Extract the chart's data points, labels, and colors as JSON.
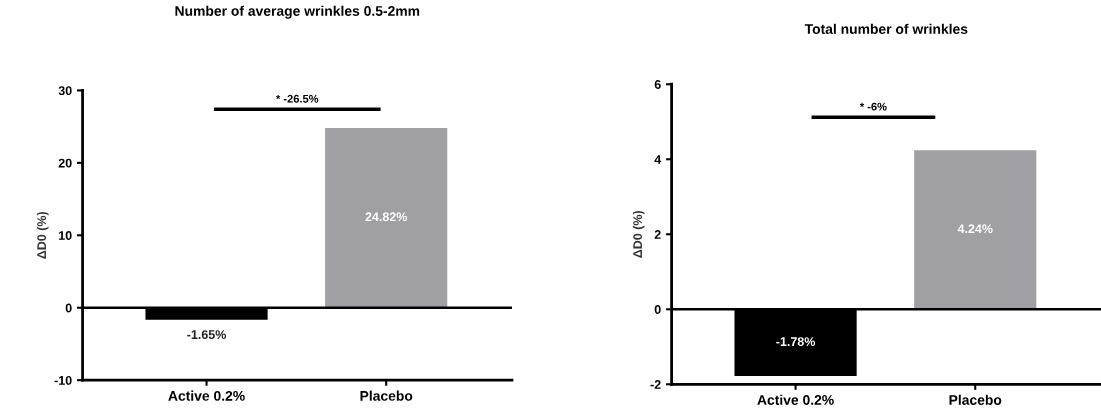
{
  "chart_data": [
    {
      "type": "bar",
      "title": "Number of average wrinkles 0.5-2mm",
      "ylabel": "ΔD0 (%)",
      "categories": [
        "Active 0.2%",
        "Placebo"
      ],
      "values": [
        -1.65,
        24.82
      ],
      "colors": [
        "#000000",
        "#a0a0a4"
      ],
      "value_labels": [
        "-1.65%",
        "24.82%"
      ],
      "ylim": [
        -10,
        30
      ],
      "yticks": [
        -10,
        0,
        10,
        20,
        30
      ],
      "ref_lines": [
        {
          "axis": "y",
          "value": 0,
          "color": "#000000"
        }
      ],
      "annotations": [
        "* -26.5%"
      ]
    },
    {
      "type": "bar",
      "title": "Total number of wrinkles",
      "ylabel": "ΔD0 (%)",
      "categories": [
        "Active 0.2%",
        "Placebo"
      ],
      "values": [
        -1.78,
        4.24
      ],
      "colors": [
        "#000000",
        "#a0a0a4"
      ],
      "value_labels": [
        "-1.78%",
        "4.24%"
      ],
      "ylim": [
        -2,
        6
      ],
      "yticks": [
        -2,
        0,
        2,
        4,
        6
      ],
      "ref_lines": [
        {
          "axis": "y",
          "value": 0,
          "color": "#000000"
        }
      ],
      "annotations": [
        "* -6%"
      ]
    }
  ]
}
